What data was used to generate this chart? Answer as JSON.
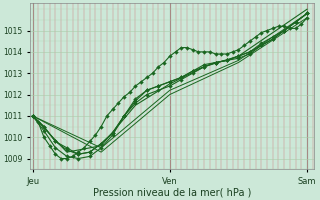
{
  "xlabel": "Pression niveau de la mer( hPa )",
  "background_color": "#cce8d8",
  "plot_bg_color": "#cce8d8",
  "line_color": "#1a6620",
  "ylim": [
    1008.5,
    1016.3
  ],
  "xlim": [
    -0.02,
    2.05
  ],
  "xtick_labels": [
    "Jeu",
    "Ven",
    "Sam"
  ],
  "xtick_positions": [
    0,
    1,
    2
  ],
  "ytick_labels": [
    "1009",
    "1010",
    "1011",
    "1012",
    "1013",
    "1014",
    "1015"
  ],
  "ytick_values": [
    1009,
    1010,
    1011,
    1012,
    1013,
    1014,
    1015
  ],
  "series": [
    {
      "x": [
        0.0,
        0.042,
        0.083,
        0.125,
        0.167,
        0.208,
        0.25,
        0.292,
        0.333,
        0.375,
        0.417,
        0.458,
        0.5,
        0.542,
        0.583,
        0.625,
        0.667,
        0.708,
        0.75,
        0.792,
        0.833,
        0.875,
        0.917,
        0.958,
        1.0,
        1.042,
        1.083,
        1.125,
        1.167,
        1.208,
        1.25,
        1.292,
        1.333,
        1.375,
        1.417,
        1.458,
        1.5,
        1.542,
        1.583,
        1.625,
        1.667,
        1.708,
        1.75,
        1.792,
        1.833,
        1.875,
        1.917,
        1.958,
        2.0
      ],
      "y": [
        1011.0,
        1010.7,
        1010.0,
        1009.6,
        1009.2,
        1009.0,
        1009.0,
        1009.1,
        1009.3,
        1009.5,
        1009.8,
        1010.1,
        1010.5,
        1011.0,
        1011.3,
        1011.6,
        1011.9,
        1012.1,
        1012.4,
        1012.6,
        1012.8,
        1013.0,
        1013.3,
        1013.5,
        1013.8,
        1014.0,
        1014.2,
        1014.2,
        1014.1,
        1014.0,
        1014.0,
        1014.0,
        1013.9,
        1013.9,
        1013.9,
        1014.0,
        1014.1,
        1014.3,
        1014.5,
        1014.7,
        1014.9,
        1015.0,
        1015.1,
        1015.2,
        1015.2,
        1015.1,
        1015.1,
        1015.3,
        1015.6
      ],
      "marker": "D",
      "markersize": 2.0,
      "linewidth": 0.8
    },
    {
      "x": [
        0.0,
        0.083,
        0.167,
        0.25,
        0.333,
        0.417,
        0.5,
        0.583,
        0.667,
        0.75,
        0.833,
        0.917,
        1.0,
        1.083,
        1.167,
        1.25,
        1.333,
        1.417,
        1.5,
        1.583,
        1.667,
        1.75,
        1.833,
        1.917,
        2.0
      ],
      "y": [
        1011.0,
        1010.3,
        1009.5,
        1009.1,
        1009.0,
        1009.1,
        1009.5,
        1010.1,
        1011.0,
        1011.6,
        1012.0,
        1012.2,
        1012.4,
        1012.7,
        1013.0,
        1013.3,
        1013.5,
        1013.6,
        1013.8,
        1014.0,
        1014.3,
        1014.6,
        1015.0,
        1015.4,
        1015.8
      ],
      "marker": "D",
      "markersize": 2.0,
      "linewidth": 0.8
    },
    {
      "x": [
        0.0,
        0.083,
        0.167,
        0.25,
        0.333,
        0.417,
        0.5,
        0.583,
        0.667,
        0.75,
        0.833,
        0.917,
        1.0,
        1.083,
        1.167,
        1.25,
        1.333,
        1.417,
        1.5,
        1.583,
        1.667,
        1.75,
        1.833,
        1.917,
        2.0
      ],
      "y": [
        1011.0,
        1010.5,
        1009.8,
        1009.4,
        1009.2,
        1009.3,
        1009.7,
        1010.2,
        1011.0,
        1011.7,
        1012.2,
        1012.4,
        1012.6,
        1012.8,
        1013.1,
        1013.3,
        1013.5,
        1013.6,
        1013.7,
        1013.9,
        1014.3,
        1014.6,
        1015.0,
        1015.4,
        1015.8
      ],
      "marker": "D",
      "markersize": 2.0,
      "linewidth": 0.8
    },
    {
      "x": [
        0.0,
        0.083,
        0.167,
        0.25,
        0.333,
        0.417,
        0.5,
        0.583,
        0.667,
        0.75,
        0.833,
        0.917,
        1.0,
        1.083,
        1.167,
        1.25,
        1.333,
        1.417,
        1.5,
        1.583,
        1.667,
        1.75,
        1.833,
        1.917,
        2.0
      ],
      "y": [
        1011.0,
        1010.5,
        1009.8,
        1009.5,
        1009.2,
        1009.3,
        1009.7,
        1010.2,
        1011.0,
        1011.8,
        1012.2,
        1012.4,
        1012.6,
        1012.8,
        1013.1,
        1013.4,
        1013.5,
        1013.6,
        1013.8,
        1014.0,
        1014.4,
        1014.7,
        1015.0,
        1015.4,
        1015.8
      ],
      "marker": "D",
      "markersize": 2.0,
      "linewidth": 0.8
    },
    {
      "x": [
        0.0,
        0.25,
        0.5,
        0.75,
        1.0,
        1.25,
        1.5,
        1.75,
        2.0
      ],
      "y": [
        1011.0,
        1009.3,
        1009.6,
        1011.5,
        1012.5,
        1013.3,
        1013.8,
        1014.9,
        1016.0
      ],
      "marker": null,
      "markersize": 0,
      "linewidth": 0.8
    },
    {
      "x": [
        0.0,
        0.5,
        1.0,
        1.5,
        2.0
      ],
      "y": [
        1011.0,
        1009.3,
        1012.0,
        1013.5,
        1015.6
      ],
      "marker": null,
      "markersize": 0,
      "linewidth": 0.7
    },
    {
      "x": [
        0.0,
        0.5,
        1.0,
        1.5,
        2.0
      ],
      "y": [
        1011.0,
        1009.5,
        1012.2,
        1013.6,
        1015.8
      ],
      "marker": null,
      "markersize": 0,
      "linewidth": 0.7
    }
  ]
}
